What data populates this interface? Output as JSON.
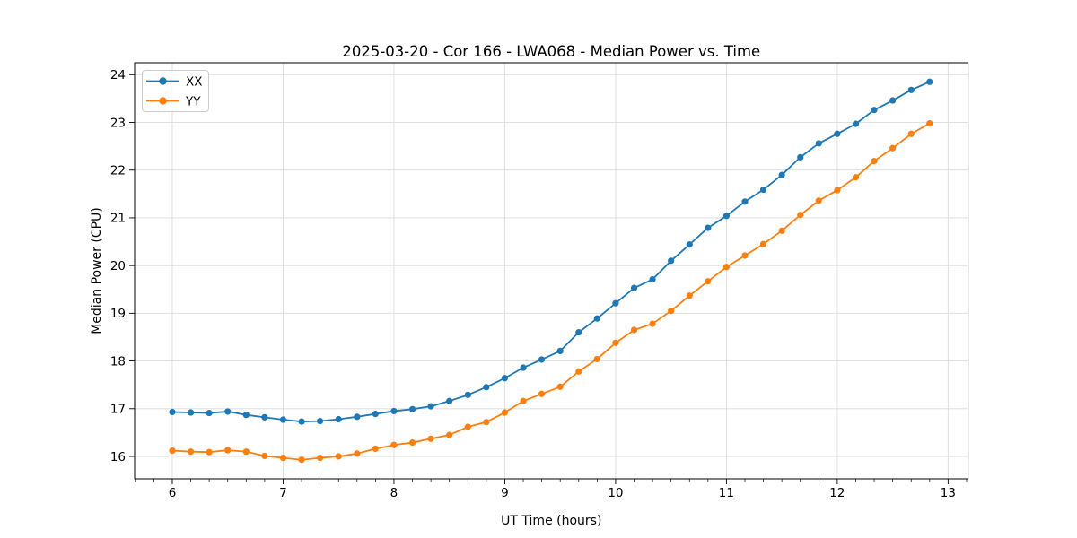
{
  "chart_data": {
    "type": "line",
    "title": "2025-03-20 - Cor 166 - LWA068 - Median Power vs. Time",
    "xlabel": "UT Time (hours)",
    "ylabel": "Median Power (CPU)",
    "xlim": [
      5.66,
      13.18
    ],
    "ylim": [
      15.53,
      24.25
    ],
    "x_ticks": [
      6,
      7,
      8,
      9,
      10,
      11,
      12,
      13
    ],
    "y_ticks": [
      16,
      17,
      18,
      19,
      20,
      21,
      22,
      23,
      24
    ],
    "x_minor_step": 0.16667,
    "grid": true,
    "legend_position": "upper-left",
    "background_color": "#ffffff",
    "grid_color": "#dcdcdc",
    "x": [
      6.0,
      6.167,
      6.333,
      6.5,
      6.667,
      6.833,
      7.0,
      7.167,
      7.333,
      7.5,
      7.667,
      7.833,
      8.0,
      8.167,
      8.333,
      8.5,
      8.667,
      8.833,
      9.0,
      9.167,
      9.333,
      9.5,
      9.667,
      9.833,
      10.0,
      10.167,
      10.333,
      10.5,
      10.667,
      10.833,
      11.0,
      11.167,
      11.333,
      11.5,
      11.667,
      11.833,
      12.0,
      12.167,
      12.333,
      12.5,
      12.667,
      12.833
    ],
    "series": [
      {
        "name": "XX",
        "color": "#1f77b4",
        "values": [
          16.93,
          16.92,
          16.91,
          16.94,
          16.87,
          16.82,
          16.77,
          16.73,
          16.74,
          16.78,
          16.83,
          16.89,
          16.95,
          16.99,
          17.05,
          17.16,
          17.29,
          17.45,
          17.64,
          17.86,
          18.03,
          18.21,
          18.6,
          18.89,
          19.21,
          19.53,
          19.71,
          20.1,
          20.44,
          20.79,
          21.04,
          21.34,
          21.59,
          21.9,
          22.27,
          22.56,
          22.76,
          22.97,
          23.26,
          23.46,
          23.68,
          23.85
        ]
      },
      {
        "name": "YY",
        "color": "#ff7f0e",
        "values": [
          16.12,
          16.1,
          16.09,
          16.13,
          16.1,
          16.01,
          15.97,
          15.93,
          15.97,
          16.0,
          16.06,
          16.16,
          16.24,
          16.29,
          16.37,
          16.45,
          16.62,
          16.72,
          16.92,
          17.16,
          17.31,
          17.46,
          17.78,
          18.04,
          18.38,
          18.65,
          18.78,
          19.05,
          19.37,
          19.67,
          19.97,
          20.21,
          20.45,
          20.73,
          21.06,
          21.36,
          21.58,
          21.85,
          22.19,
          22.46,
          22.76,
          22.98
        ]
      }
    ]
  }
}
